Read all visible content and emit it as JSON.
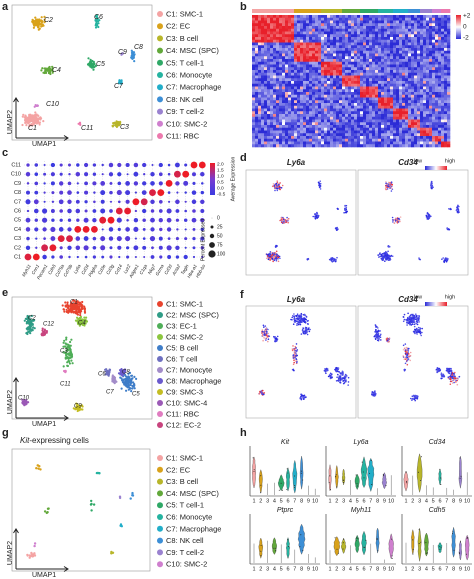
{
  "a": {
    "label": "a",
    "xlabel": "UMAP1",
    "ylabel": "UMAP2",
    "clusters": [
      {
        "tag": "C1",
        "name": "C1: SMC-1",
        "color": "#f4a3a3"
      },
      {
        "tag": "C2",
        "name": "C2: EC",
        "color": "#d9a21b"
      },
      {
        "tag": "C3",
        "name": "C3: B cell",
        "color": "#b8b62a"
      },
      {
        "tag": "C4",
        "name": "C4: MSC (SPC)",
        "color": "#62a83a"
      },
      {
        "tag": "C5",
        "name": "C5: T cell-1",
        "color": "#2fa866"
      },
      {
        "tag": "C6",
        "name": "C6: Monocyte",
        "color": "#25b3a0"
      },
      {
        "tag": "C7",
        "name": "C7: Macrophage",
        "color": "#22aec9"
      },
      {
        "tag": "C8",
        "name": "C8: NK cell",
        "color": "#3d8fd6"
      },
      {
        "tag": "C9",
        "name": "C9: T cell-2",
        "color": "#9a82d0"
      },
      {
        "tag": "C10",
        "name": "C10: SMC-2",
        "color": "#cf7fce"
      },
      {
        "tag": "C11",
        "name": "C11: RBC",
        "color": "#ec79ad"
      }
    ]
  },
  "b": {
    "label": "b",
    "colorbar": [
      "+2",
      "0",
      "-2"
    ]
  },
  "c": {
    "label": "c",
    "genes": [
      "Myh11",
      "Cnn1",
      "Pecam1",
      "Cdh5",
      "Cd79a",
      "Cd79b",
      "Ly6a",
      "Cd34",
      "Pdgfra",
      "Cd3e",
      "Cd3g",
      "Cd14",
      "Lyz2",
      "Adgre1",
      "C1qa",
      "Nkg7",
      "Gzma",
      "Cd3d",
      "Acta2",
      "Tagln",
      "Hba-a1",
      "Hbb-bs"
    ],
    "color_title": "Average Expression",
    "color_ticks": [
      "2.0",
      "1.5",
      "1.0",
      "0.5",
      "0.0",
      "-0.5"
    ],
    "size_title": "Percent Expressed",
    "size_ticks": [
      "0",
      "25",
      "50",
      "75",
      "100"
    ]
  },
  "d": {
    "label": "d",
    "genes": [
      "Ly6a",
      "Cd34"
    ],
    "low": "low",
    "high": "high"
  },
  "e": {
    "label": "e",
    "xlabel": "UMAP1",
    "ylabel": "UMAP2",
    "clusters": [
      {
        "tag": "C1",
        "name": "C1: SMC-1",
        "color": "#e8432e"
      },
      {
        "tag": "C2",
        "name": "C2: MSC (SPC)",
        "color": "#2f9c86"
      },
      {
        "tag": "C3",
        "name": "C3: EC-1",
        "color": "#4fae58"
      },
      {
        "tag": "C4",
        "name": "C4: SMC-2",
        "color": "#8cc63f"
      },
      {
        "tag": "C5",
        "name": "C5: B cell",
        "color": "#3f7dc8"
      },
      {
        "tag": "C6",
        "name": "C6: T cell",
        "color": "#6e6fc0"
      },
      {
        "tag": "C7",
        "name": "C7: Monocyte",
        "color": "#a38cc9"
      },
      {
        "tag": "C8",
        "name": "C8: Macrophage",
        "color": "#6a5acd"
      },
      {
        "tag": "C9",
        "name": "C9: SMC-3",
        "color": "#c4bd22"
      },
      {
        "tag": "C10",
        "name": "C10: SMC-4",
        "color": "#9b59b6"
      },
      {
        "tag": "C11",
        "name": "C11: RBC",
        "color": "#e07cc0"
      },
      {
        "tag": "C12",
        "name": "C12: EC-2",
        "color": "#c8447e"
      }
    ]
  },
  "f": {
    "label": "f",
    "genes": [
      "Ly6a",
      "Cd34"
    ],
    "low": "low",
    "high": "high"
  },
  "g": {
    "label": "g",
    "title_gene": "Kit",
    "title_rest": "-expressing cells",
    "xlabel": "UMAP1",
    "ylabel": "UMAP2",
    "clusters": [
      {
        "name": "C1: SMC-1",
        "color": "#f4a3a3"
      },
      {
        "name": "C2: EC",
        "color": "#d9a21b"
      },
      {
        "name": "C3: B cell",
        "color": "#b8b62a"
      },
      {
        "name": "C4: MSC (SPC)",
        "color": "#62a83a"
      },
      {
        "name": "C5: T cell-1",
        "color": "#2fa866"
      },
      {
        "name": "C6: Monocyte",
        "color": "#25b3a0"
      },
      {
        "name": "C7: Macrophage",
        "color": "#22aec9"
      },
      {
        "name": "C8: NK cell",
        "color": "#3d8fd6"
      },
      {
        "name": "C9: T cell-2",
        "color": "#9a82d0"
      },
      {
        "name": "C10: SMC-2",
        "color": "#cf7fce"
      }
    ]
  },
  "h": {
    "label": "h",
    "genes": [
      "Kit",
      "Ly6a",
      "Cd34",
      "Ptprc",
      "Myh11",
      "Cdh5"
    ],
    "x": [
      "1",
      "2",
      "3",
      "4",
      "5",
      "6",
      "7",
      "8",
      "9",
      "10"
    ]
  }
}
